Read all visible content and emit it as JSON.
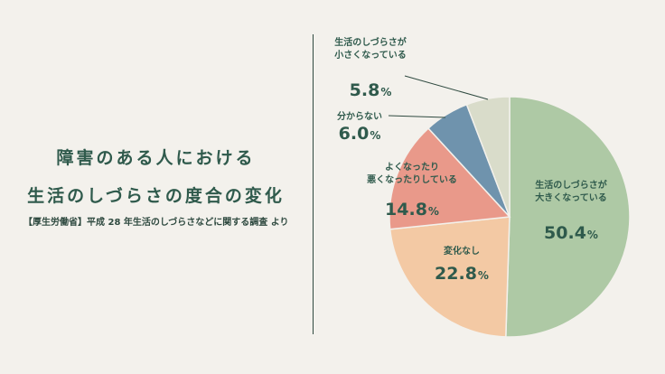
{
  "title": [
    "障害のある人における",
    "生活のしづらさの度合の変化"
  ],
  "source": "【厚生労働省】平成 28 年生活のしづらさなどに関する調査 より",
  "chart_data": {
    "type": "pie",
    "start_angle_deg": 0,
    "direction": "clockwise",
    "slices": [
      {
        "label": [
          "生活のしづらさが",
          "大きくなっている"
        ],
        "value": 50.4,
        "num": "50.4",
        "unit": "%",
        "color": "#aec9a5",
        "label_color": "#2f5a4c"
      },
      {
        "label": [
          "変化なし"
        ],
        "value": 22.8,
        "num": "22.8",
        "unit": "%",
        "color": "#f3c9a4",
        "label_color": "#2f5a4c"
      },
      {
        "label": [
          "よくなったり",
          "悪くなったりしている"
        ],
        "value": 14.8,
        "num": "14.8",
        "unit": "%",
        "color": "#e9998a",
        "label_color": "#2f5a4c"
      },
      {
        "label": [
          "分からない"
        ],
        "value": 6.0,
        "num": "6.0",
        "unit": "%",
        "color": "#6f93ad",
        "label_color": "#2f5a4c"
      },
      {
        "label": [
          "生活のしづらさが",
          "小さくなっている"
        ],
        "value": 5.8,
        "num": "5.8",
        "unit": "%",
        "color": "#d9dcca",
        "label_color": "#2f5a4c"
      }
    ]
  }
}
